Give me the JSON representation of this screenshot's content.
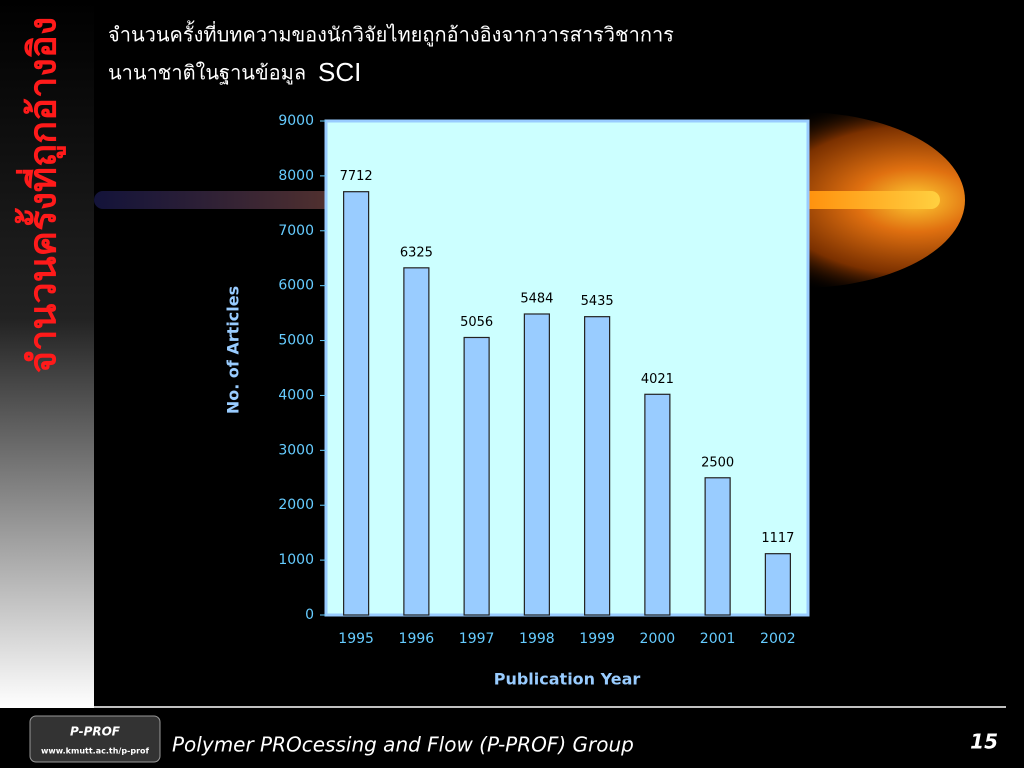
{
  "slide": {
    "side_title": "จำนวนครั้งที่ถูกอ้างอิง",
    "heading_line1": "จำนวนครั้งที่บทความของนักวิจัยไทยถูกอ้างอิงจากวารสารวิชาการ",
    "heading_line2": "นานาชาติในฐานข้อมูล",
    "heading_sci": "SCI",
    "footer": "Polymer PROcessing and Flow (P-PROF) Group",
    "page_number": "15",
    "logo_text": "P-PROF",
    "logo_url": "www.kmutt.ac.th/p-prof"
  },
  "chart_data": {
    "type": "bar",
    "categories": [
      "1995",
      "1996",
      "1997",
      "1998",
      "1999",
      "2000",
      "2001",
      "2002"
    ],
    "values": [
      7712,
      6325,
      5056,
      5484,
      5435,
      4021,
      2500,
      1117
    ],
    "color": "#99ccff",
    "xlabel": "Publication Year",
    "ylabel": "No. of Articles",
    "ylim": [
      0,
      9000
    ],
    "yticks": [
      0,
      1000,
      2000,
      3000,
      4000,
      5000,
      6000,
      7000,
      8000,
      9000
    ]
  }
}
